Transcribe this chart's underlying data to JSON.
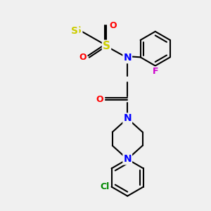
{
  "bg_color": "#f0f0f0",
  "line_color": "#000000",
  "bond_width": 1.5,
  "atom_colors": {
    "N": "#0000ff",
    "O": "#ff0000",
    "S": "#cccc00",
    "F": "#cc00cc",
    "Cl": "#008800",
    "C": "#000000"
  },
  "font_size": 9
}
